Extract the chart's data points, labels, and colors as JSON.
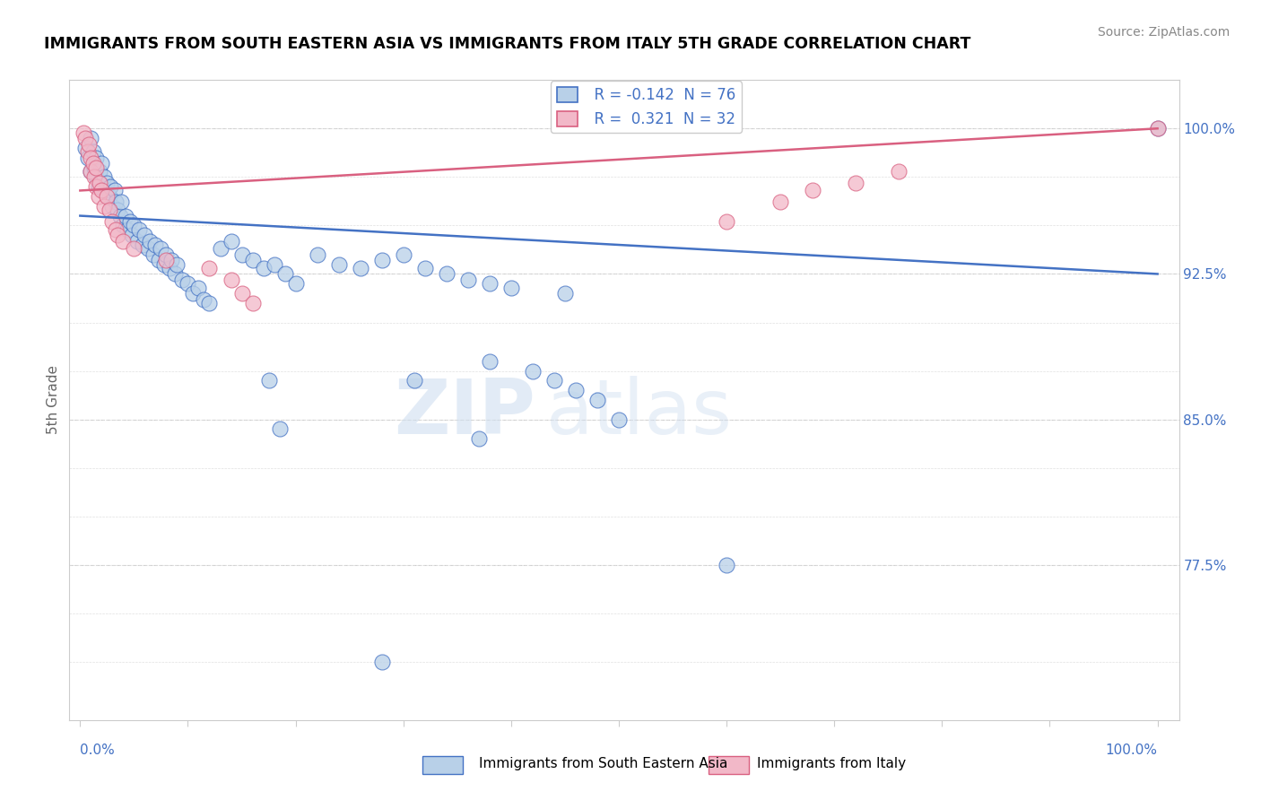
{
  "title": "IMMIGRANTS FROM SOUTH EASTERN ASIA VS IMMIGRANTS FROM ITALY 5TH GRADE CORRELATION CHART",
  "source": "Source: ZipAtlas.com",
  "ylabel": "5th Grade",
  "legend_label_blue": "Immigrants from South Eastern Asia",
  "legend_label_pink": "Immigrants from Italy",
  "R_blue": -0.142,
  "N_blue": 76,
  "R_pink": 0.321,
  "N_pink": 32,
  "color_blue": "#b8d0e8",
  "color_pink": "#f2b8c8",
  "color_line_blue": "#4472c4",
  "color_line_pink": "#d96080",
  "color_text": "#4472c4",
  "watermark_zip": "ZIP",
  "watermark_atlas": "atlas",
  "ytick_vals": [
    0.725,
    0.75,
    0.775,
    0.8,
    0.825,
    0.85,
    0.875,
    0.9,
    0.925,
    0.95,
    0.975,
    1.0
  ],
  "ytick_labels": [
    "",
    "",
    "77.5%",
    "",
    "",
    "85.0%",
    "",
    "",
    "92.5%",
    "",
    "",
    "100.0%"
  ],
  "ymin": 0.695,
  "ymax": 1.025,
  "xmin": -0.01,
  "xmax": 1.02,
  "blue_scatter_x": [
    0.005,
    0.007,
    0.01,
    0.01,
    0.012,
    0.013,
    0.015,
    0.015,
    0.017,
    0.018,
    0.02,
    0.022,
    0.023,
    0.025,
    0.027,
    0.028,
    0.03,
    0.032,
    0.033,
    0.035,
    0.037,
    0.038,
    0.04,
    0.042,
    0.044,
    0.046,
    0.048,
    0.05,
    0.053,
    0.055,
    0.058,
    0.06,
    0.063,
    0.065,
    0.068,
    0.07,
    0.073,
    0.075,
    0.078,
    0.08,
    0.083,
    0.085,
    0.088,
    0.09,
    0.095,
    0.1,
    0.105,
    0.11,
    0.115,
    0.12,
    0.13,
    0.14,
    0.15,
    0.16,
    0.17,
    0.18,
    0.19,
    0.2,
    0.22,
    0.24,
    0.26,
    0.28,
    0.3,
    0.32,
    0.34,
    0.36,
    0.38,
    0.4,
    0.45,
    0.5,
    0.38,
    0.42,
    0.44,
    0.46,
    0.48,
    1.0
  ],
  "blue_scatter_y": [
    0.99,
    0.985,
    0.978,
    0.995,
    0.988,
    0.98,
    0.985,
    0.975,
    0.97,
    0.978,
    0.982,
    0.975,
    0.968,
    0.972,
    0.965,
    0.97,
    0.96,
    0.968,
    0.962,
    0.958,
    0.955,
    0.962,
    0.95,
    0.955,
    0.948,
    0.952,
    0.945,
    0.95,
    0.942,
    0.948,
    0.94,
    0.945,
    0.938,
    0.942,
    0.935,
    0.94,
    0.932,
    0.938,
    0.93,
    0.935,
    0.928,
    0.932,
    0.925,
    0.93,
    0.922,
    0.92,
    0.915,
    0.918,
    0.912,
    0.91,
    0.938,
    0.942,
    0.935,
    0.932,
    0.928,
    0.93,
    0.925,
    0.92,
    0.935,
    0.93,
    0.928,
    0.932,
    0.935,
    0.928,
    0.925,
    0.922,
    0.92,
    0.918,
    0.915,
    0.85,
    0.88,
    0.875,
    0.87,
    0.865,
    0.86,
    1.0
  ],
  "blue_outlier_x": [
    0.175,
    0.185,
    0.31,
    0.37,
    0.6,
    0.28
  ],
  "blue_outlier_y": [
    0.87,
    0.845,
    0.87,
    0.84,
    0.775,
    0.725
  ],
  "pink_scatter_x": [
    0.003,
    0.005,
    0.007,
    0.008,
    0.01,
    0.01,
    0.012,
    0.013,
    0.015,
    0.015,
    0.017,
    0.018,
    0.02,
    0.022,
    0.025,
    0.027,
    0.03,
    0.033,
    0.035,
    0.04,
    0.05,
    0.08,
    0.12,
    0.14,
    0.15,
    0.16,
    0.6,
    0.65,
    0.68,
    0.72,
    0.76,
    1.0
  ],
  "pink_scatter_y": [
    0.998,
    0.995,
    0.988,
    0.992,
    0.985,
    0.978,
    0.982,
    0.975,
    0.98,
    0.97,
    0.965,
    0.972,
    0.968,
    0.96,
    0.965,
    0.958,
    0.952,
    0.948,
    0.945,
    0.942,
    0.938,
    0.932,
    0.928,
    0.922,
    0.915,
    0.91,
    0.952,
    0.962,
    0.968,
    0.972,
    0.978,
    1.0
  ],
  "blue_trendline_x": [
    0.0,
    1.0
  ],
  "blue_trendline_y": [
    0.955,
    0.925
  ],
  "pink_trendline_x": [
    0.0,
    1.0
  ],
  "pink_trendline_y": [
    0.968,
    1.0
  ]
}
